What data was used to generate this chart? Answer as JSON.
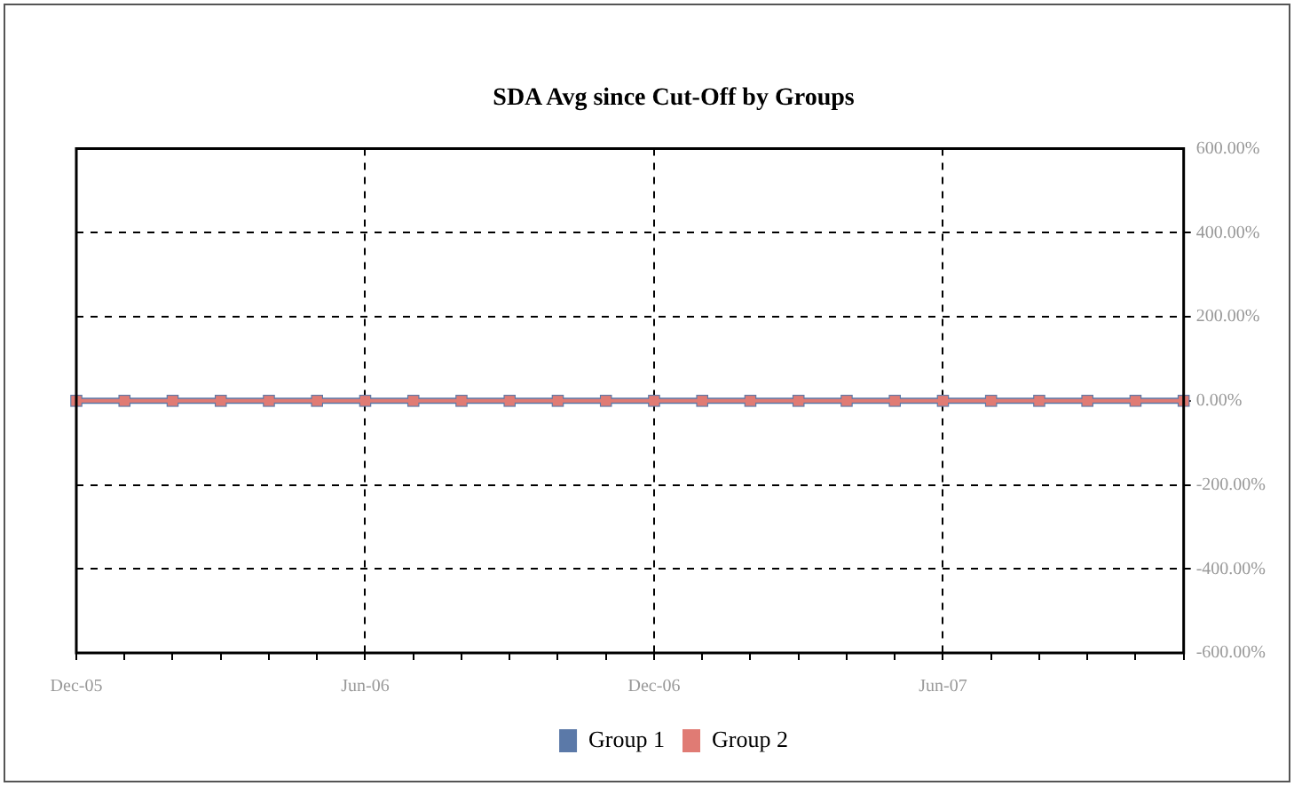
{
  "chart_data": {
    "type": "line",
    "title": "SDA Avg since Cut-Off by Groups",
    "categories": [
      "Dec-05",
      null,
      null,
      null,
      null,
      null,
      "Jun-06",
      null,
      null,
      null,
      null,
      null,
      "Dec-06",
      null,
      null,
      null,
      null,
      null,
      "Jun-07",
      null,
      null,
      null,
      null,
      null
    ],
    "series": [
      {
        "name": "Group 1",
        "color": "#5b79a8",
        "values": [
          0,
          0,
          0,
          0,
          0,
          0,
          0,
          0,
          0,
          0,
          0,
          0,
          0,
          0,
          0,
          0,
          0,
          0,
          0,
          0,
          0,
          0,
          0,
          0
        ]
      },
      {
        "name": "Group 2",
        "color": "#e07b74",
        "values": [
          0,
          0,
          0,
          0,
          0,
          0,
          0,
          0,
          0,
          0,
          0,
          0,
          0,
          0,
          0,
          0,
          0,
          0,
          0,
          0,
          0,
          0,
          0,
          0
        ]
      }
    ],
    "ylim": [
      -600,
      600
    ],
    "yticks": [
      {
        "value": -600,
        "label": "-600.00%"
      },
      {
        "value": -400,
        "label": "-400.00%"
      },
      {
        "value": -200,
        "label": "-200.00%"
      },
      {
        "value": 0,
        "label": "0.00%"
      },
      {
        "value": 200,
        "label": "200.00%"
      },
      {
        "value": 400,
        "label": "400.00%"
      },
      {
        "value": 600,
        "label": "600.00%"
      }
    ],
    "grid": true,
    "legend": "bottom",
    "marker": "square",
    "line_style": "solid"
  }
}
